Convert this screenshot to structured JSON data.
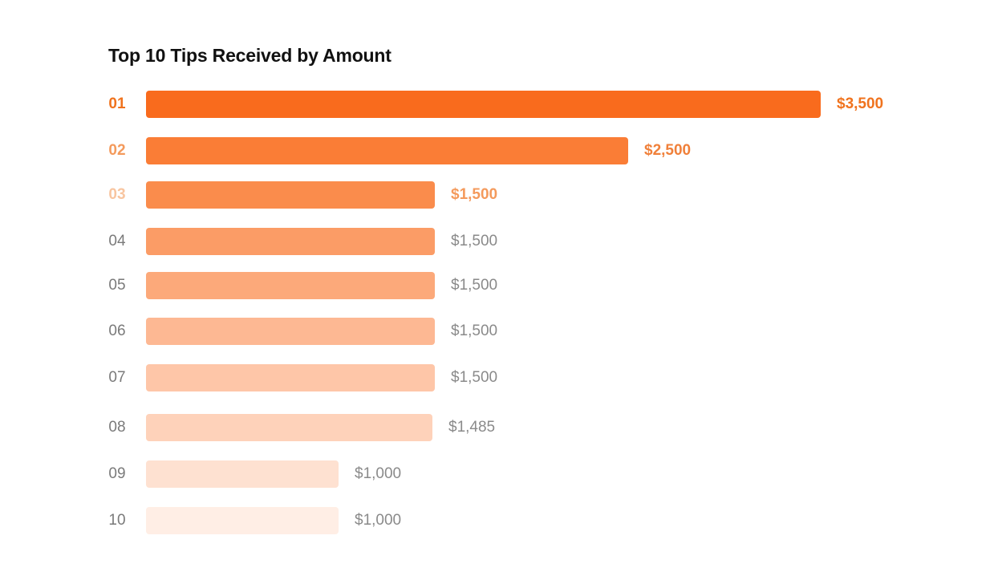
{
  "title": "Top 10 Tips Received by Amount",
  "chart_data": {
    "type": "bar",
    "orientation": "horizontal",
    "title": "Top 10 Tips Received by Amount",
    "categories": [
      "01",
      "02",
      "03",
      "04",
      "05",
      "06",
      "07",
      "08",
      "09",
      "10"
    ],
    "values": [
      3500,
      2500,
      1500,
      1500,
      1500,
      1500,
      1500,
      1485,
      1000,
      1000
    ],
    "value_labels": [
      "$3,500",
      "$2,500",
      "$1,500",
      "$1,500",
      "$1,500",
      "$1,500",
      "$1,500",
      "$1,485",
      "$1,000",
      "$1,000"
    ],
    "bar_colors": [
      "#F96B1D",
      "#FA7D36",
      "#FA8C4C",
      "#FB9C66",
      "#FCA97A",
      "#FDB893",
      "#FEC6A8",
      "#FED2BA",
      "#FEE1D1",
      "#FFEEE5"
    ],
    "rank_colors": [
      "#F0731E",
      "#F49A5C",
      "#F8C5A0",
      "#7A7A7A",
      "#7A7A7A",
      "#7A7A7A",
      "#7A7A7A",
      "#7A7A7A",
      "#7A7A7A",
      "#7A7A7A"
    ],
    "value_colors": [
      "#F0731E",
      "#F0803A",
      "#F49A5C",
      "#8A8A8A",
      "#8A8A8A",
      "#8A8A8A",
      "#8A8A8A",
      "#8A8A8A",
      "#8A8A8A",
      "#8A8A8A"
    ],
    "xlim": [
      0,
      3500
    ],
    "grid": false,
    "legend": "none",
    "xlabel": "",
    "ylabel": ""
  }
}
